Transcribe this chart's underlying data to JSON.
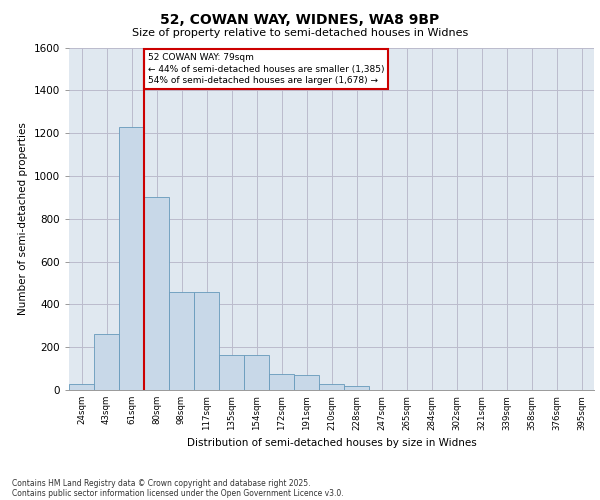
{
  "title_line1": "52, COWAN WAY, WIDNES, WA8 9BP",
  "title_line2": "Size of property relative to semi-detached houses in Widnes",
  "xlabel": "Distribution of semi-detached houses by size in Widnes",
  "ylabel": "Number of semi-detached properties",
  "categories": [
    "24sqm",
    "43sqm",
    "61sqm",
    "80sqm",
    "98sqm",
    "117sqm",
    "135sqm",
    "154sqm",
    "172sqm",
    "191sqm",
    "210sqm",
    "228sqm",
    "247sqm",
    "265sqm",
    "284sqm",
    "302sqm",
    "321sqm",
    "339sqm",
    "358sqm",
    "376sqm",
    "395sqm"
  ],
  "values": [
    30,
    260,
    1230,
    900,
    460,
    460,
    165,
    165,
    75,
    70,
    30,
    18,
    0,
    0,
    0,
    0,
    0,
    0,
    0,
    0,
    0
  ],
  "bar_color": "#c8d8e8",
  "bar_edge_color": "#6699bb",
  "grid_color": "#bbbbcc",
  "background_color": "#e0e8f0",
  "vline_color": "#cc0000",
  "annotation_text": "52 COWAN WAY: 79sqm\n← 44% of semi-detached houses are smaller (1,385)\n54% of semi-detached houses are larger (1,678) →",
  "annotation_box_color": "#cc0000",
  "ylim": [
    0,
    1600
  ],
  "yticks": [
    0,
    200,
    400,
    600,
    800,
    1000,
    1200,
    1400,
    1600
  ],
  "footer_line1": "Contains HM Land Registry data © Crown copyright and database right 2025.",
  "footer_line2": "Contains public sector information licensed under the Open Government Licence v3.0."
}
